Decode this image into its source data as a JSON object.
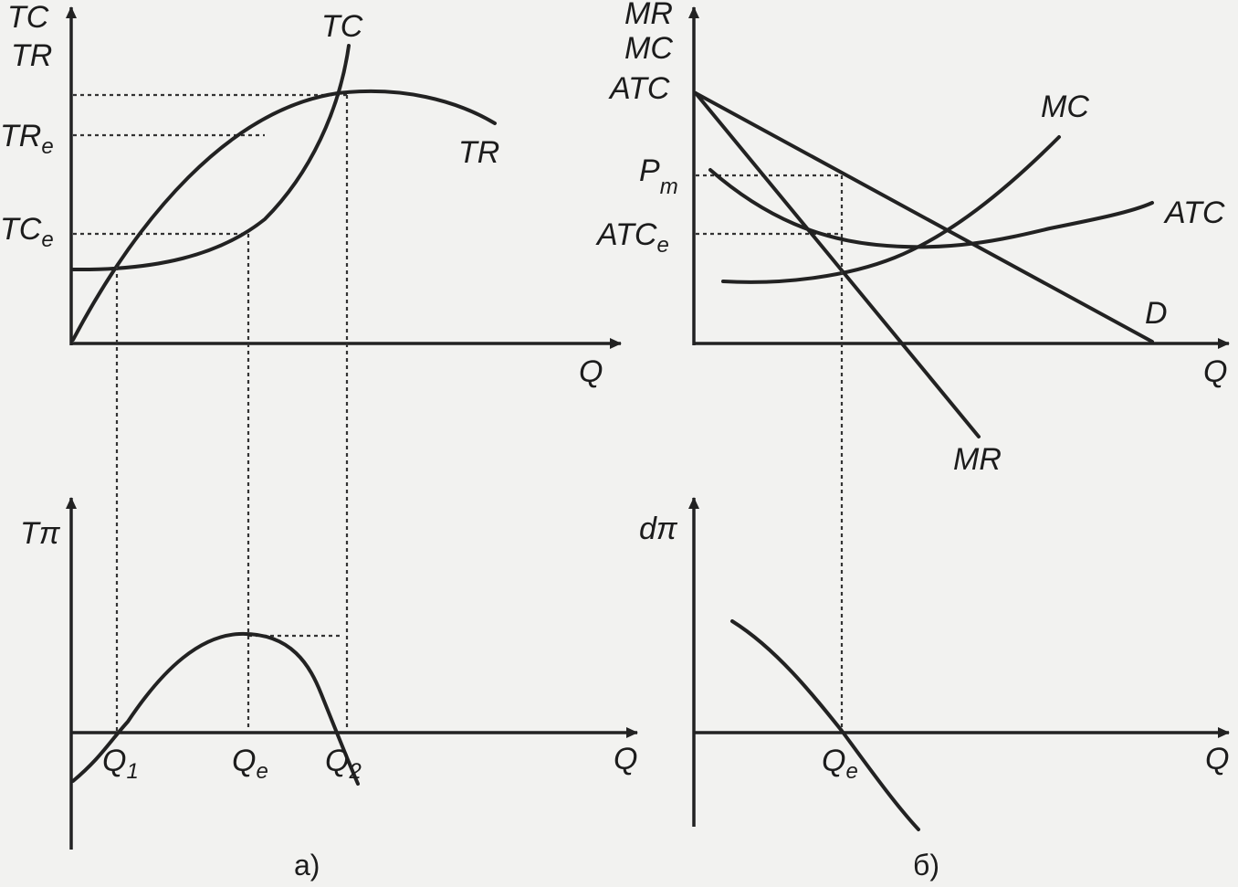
{
  "panel_a": {
    "top": {
      "y_axis_labels": [
        "TC",
        "TR"
      ],
      "x_axis_label": "Q",
      "tr_e_main": "TR",
      "tr_e_sub": "e",
      "tc_e_main": "TC",
      "tc_e_sub": "e",
      "curve_tc_label": "TC",
      "curve_tr_label": "TR"
    },
    "bottom": {
      "y_axis_label": "Tπ",
      "x_axis_label": "Q",
      "q1_main": "Q",
      "q1_sub": "1",
      "qe_main": "Q",
      "qe_sub": "e",
      "q2_main": "Q",
      "q2_sub": "2"
    },
    "caption": "а)"
  },
  "panel_b": {
    "top": {
      "y_axis_labels": [
        "MR",
        "MC",
        "ATC"
      ],
      "x_axis_label": "Q",
      "pm_main": "P",
      "pm_sub": "m",
      "atce_main": "ATC",
      "atce_sub": "e",
      "curve_mc_label": "MC",
      "curve_atc_label": "ATC",
      "curve_d_label": "D",
      "curve_mr_label": "MR"
    },
    "bottom": {
      "y_axis_label": "dπ",
      "x_axis_label": "Q",
      "qe_main": "Q",
      "qe_sub": "e"
    },
    "caption": "б)"
  }
}
